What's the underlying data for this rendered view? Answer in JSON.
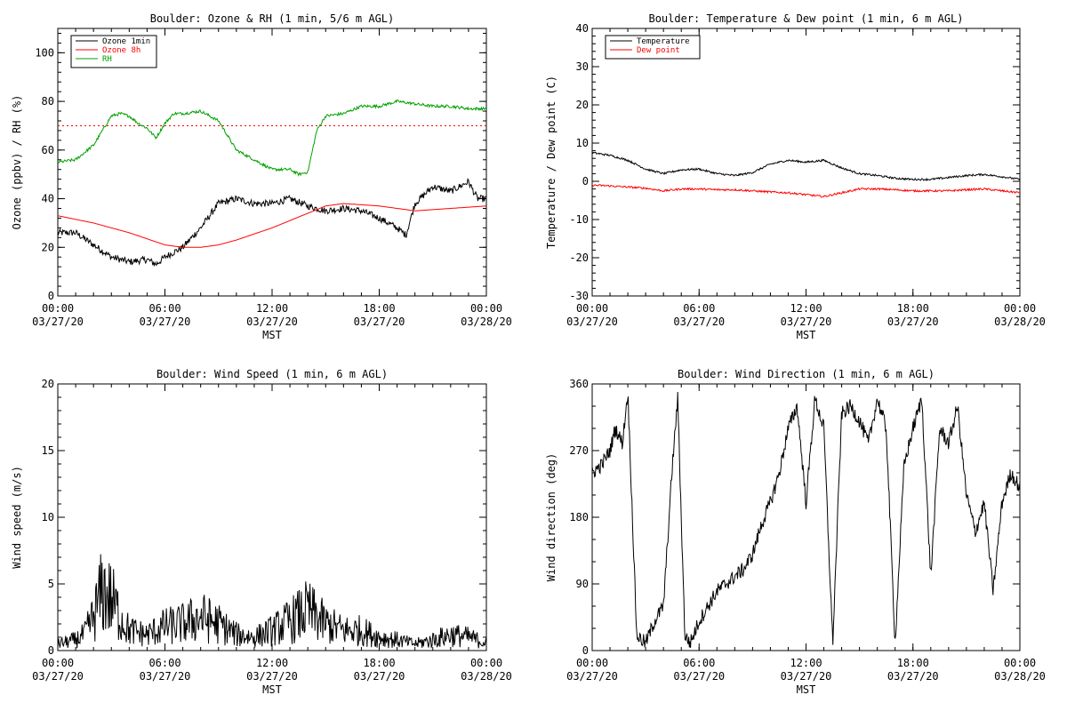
{
  "chart_data": [
    {
      "type": "line",
      "title": "Boulder: Ozone & RH (1 min, 5/6 m AGL)",
      "xlabel": "MST",
      "ylabel": "Ozone (ppbv) / RH (%)",
      "xlim_hours": [
        0,
        24
      ],
      "ylim": [
        0,
        110
      ],
      "yticks": [
        0,
        20,
        40,
        60,
        80,
        100
      ],
      "xtick_labels": [
        [
          "00:00",
          "03/27/20"
        ],
        [
          "06:00",
          "03/27/20"
        ],
        [
          "12:00",
          "03/27/20"
        ],
        [
          "18:00",
          "03/27/20"
        ],
        [
          "00:00",
          "03/28/20"
        ]
      ],
      "legend": [
        "Ozone 1min",
        "Ozone 8h",
        "RH"
      ],
      "legend_position": "top-left",
      "reference_line": {
        "y": 70,
        "color": "#ff0000",
        "style": "dotted"
      },
      "series": [
        {
          "name": "Ozone 1min",
          "color": "#000000",
          "x": [
            0,
            1,
            2,
            3,
            4,
            5,
            5.5,
            6,
            7,
            8,
            9,
            10,
            11,
            12,
            13,
            14,
            15,
            16,
            17,
            18,
            19,
            19.5,
            20,
            21,
            22,
            23,
            23.5,
            24
          ],
          "y": [
            26,
            26,
            21,
            16,
            14,
            15,
            13,
            16,
            20,
            28,
            38,
            40,
            38,
            38,
            40,
            37,
            35,
            36,
            35,
            32,
            28,
            25,
            38,
            45,
            43,
            47,
            40,
            40
          ]
        },
        {
          "name": "Ozone 8h",
          "color": "#ff0000",
          "x": [
            0,
            2,
            4,
            6,
            7,
            8,
            9,
            10,
            12,
            14,
            15,
            16,
            18,
            20,
            22,
            24
          ],
          "y": [
            33,
            30,
            26,
            21,
            20,
            20,
            21,
            23,
            28,
            34,
            37,
            38,
            37,
            35,
            36,
            37
          ]
        },
        {
          "name": "RH",
          "color": "#00a000",
          "x": [
            0,
            1,
            2,
            3,
            3.5,
            4,
            4.5,
            5,
            5.5,
            6,
            6.5,
            7,
            8,
            9,
            10,
            11,
            12,
            13,
            13.5,
            14,
            14.5,
            15,
            16,
            17,
            18,
            19,
            20,
            21,
            22,
            23,
            24
          ],
          "y": [
            55,
            56,
            62,
            74,
            75,
            74,
            71,
            69,
            65,
            71,
            75,
            75,
            76,
            72,
            60,
            56,
            52,
            52,
            50,
            51,
            68,
            74,
            75,
            78,
            78,
            80,
            79,
            78,
            78,
            77,
            77
          ]
        }
      ]
    },
    {
      "type": "line",
      "title": "Boulder: Temperature & Dew point (1 min, 6 m AGL)",
      "xlabel": "MST",
      "ylabel": "Temperature / Dew point (C)",
      "xlim_hours": [
        0,
        24
      ],
      "ylim": [
        -30,
        40
      ],
      "yticks": [
        -30,
        -20,
        -10,
        0,
        10,
        20,
        30,
        40
      ],
      "xtick_labels": [
        [
          "00:00",
          "03/27/20"
        ],
        [
          "06:00",
          "03/27/20"
        ],
        [
          "12:00",
          "03/27/20"
        ],
        [
          "18:00",
          "03/27/20"
        ],
        [
          "00:00",
          "03/28/20"
        ]
      ],
      "legend": [
        "Temperature",
        "Dew point"
      ],
      "legend_position": "top-left",
      "series": [
        {
          "name": "Temperature",
          "color": "#000000",
          "x": [
            0,
            1,
            2,
            3,
            4,
            5,
            6,
            7,
            8,
            9,
            10,
            11,
            12,
            13,
            14,
            15,
            16,
            17,
            18,
            19,
            20,
            21,
            22,
            23,
            24
          ],
          "y": [
            7.5,
            6.8,
            5.5,
            3.2,
            2.0,
            3.0,
            3.2,
            2.0,
            1.5,
            2.3,
            4.5,
            5.5,
            5.0,
            5.5,
            3.5,
            2.0,
            1.5,
            0.8,
            0.5,
            0.5,
            1.0,
            1.5,
            1.8,
            1.2,
            0.5
          ]
        },
        {
          "name": "Dew point",
          "color": "#ff0000",
          "x": [
            0,
            1,
            2,
            3,
            4,
            5,
            6,
            7,
            8,
            9,
            10,
            11,
            12,
            13,
            14,
            15,
            16,
            17,
            18,
            19,
            20,
            21,
            22,
            23,
            24
          ],
          "y": [
            -1.0,
            -1.2,
            -1.5,
            -1.8,
            -2.5,
            -2.0,
            -2.0,
            -2.2,
            -2.2,
            -2.5,
            -2.8,
            -3.0,
            -3.5,
            -4.0,
            -3.0,
            -2.0,
            -2.0,
            -2.2,
            -2.5,
            -2.5,
            -2.5,
            -2.2,
            -2.0,
            -2.5,
            -3.0
          ]
        }
      ]
    },
    {
      "type": "line",
      "title": "Boulder: Wind Speed (1 min, 6 m AGL)",
      "xlabel": "MST",
      "ylabel": "Wind speed (m/s)",
      "xlim_hours": [
        0,
        24
      ],
      "ylim": [
        0,
        20
      ],
      "yticks": [
        0,
        5,
        10,
        15,
        20
      ],
      "xtick_labels": [
        [
          "00:00",
          "03/27/20"
        ],
        [
          "06:00",
          "03/27/20"
        ],
        [
          "12:00",
          "03/27/20"
        ],
        [
          "18:00",
          "03/27/20"
        ],
        [
          "00:00",
          "03/28/20"
        ]
      ],
      "series": [
        {
          "name": "",
          "color": "#000000",
          "x": [
            0,
            1,
            1.5,
            2,
            2.5,
            3,
            3.5,
            4,
            5,
            6,
            7,
            8,
            9,
            10,
            11,
            12,
            13,
            14,
            15,
            16,
            17,
            18,
            19,
            20,
            21,
            22,
            23,
            24
          ],
          "y": [
            0.5,
            0.8,
            1.2,
            2.5,
            4.5,
            3.8,
            2.5,
            1.5,
            1.2,
            1.8,
            2.0,
            2.5,
            2.0,
            1.2,
            1.0,
            1.5,
            2.2,
            3.0,
            2.0,
            1.5,
            1.5,
            1.0,
            0.8,
            0.5,
            0.8,
            1.2,
            1.0,
            0.6
          ]
        }
      ]
    },
    {
      "type": "line",
      "title": "Boulder: Wind Direction (1 min, 6 m AGL)",
      "xlabel": "MST",
      "ylabel": "Wind direction (deg)",
      "xlim_hours": [
        0,
        24
      ],
      "ylim": [
        0,
        360
      ],
      "yticks": [
        0,
        90,
        180,
        270,
        360
      ],
      "xtick_labels": [
        [
          "00:00",
          "03/27/20"
        ],
        [
          "06:00",
          "03/27/20"
        ],
        [
          "12:00",
          "03/27/20"
        ],
        [
          "18:00",
          "03/27/20"
        ],
        [
          "00:00",
          "03/28/20"
        ]
      ],
      "series": [
        {
          "name": "",
          "color": "#000000",
          "x": [
            0,
            0.5,
            1,
            1.3,
            1.7,
            2.0,
            2.5,
            3,
            3.5,
            4,
            4.5,
            4.8,
            5.2,
            5.5,
            6,
            6.5,
            7,
            7.5,
            8,
            8.5,
            9,
            9.5,
            10,
            10.5,
            11,
            11.5,
            12,
            12.5,
            13,
            13.5,
            14,
            14.5,
            15,
            15.5,
            16,
            16.5,
            17,
            17.5,
            18,
            18.5,
            19,
            19.5,
            20,
            20.5,
            21,
            21.5,
            22,
            22.5,
            23,
            23.5,
            24
          ],
          "y": [
            240,
            250,
            270,
            300,
            280,
            350,
            20,
            10,
            40,
            60,
            250,
            340,
            20,
            10,
            40,
            60,
            80,
            90,
            100,
            110,
            130,
            170,
            200,
            240,
            300,
            330,
            200,
            340,
            300,
            10,
            320,
            330,
            310,
            280,
            340,
            300,
            10,
            250,
            300,
            340,
            100,
            300,
            280,
            330,
            210,
            160,
            200,
            80,
            200,
            240,
            220
          ]
        }
      ]
    }
  ]
}
